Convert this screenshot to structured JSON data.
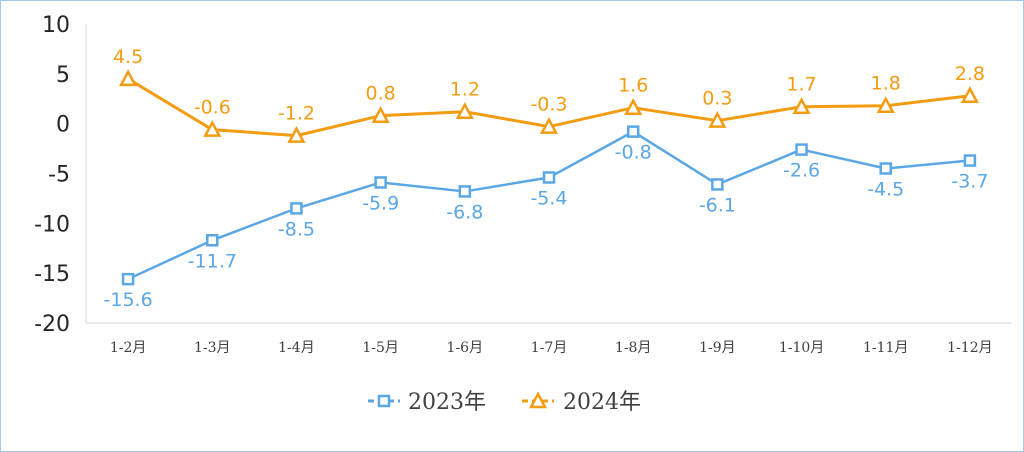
{
  "chart_data": {
    "type": "line",
    "categories": [
      "1-2月",
      "1-3月",
      "1-4月",
      "1-5月",
      "1-6月",
      "1-7月",
      "1-8月",
      "1-9月",
      "1-10月",
      "1-11月",
      "1-12月"
    ],
    "ylim": [
      -20,
      10
    ],
    "yticks": [
      "10",
      "5",
      "0",
      "-5",
      "-10",
      "-15",
      "-20"
    ],
    "grid": false,
    "legend_position": "bottom",
    "series": [
      {
        "name": "2023年",
        "color": "#5ba7e6",
        "marker": "square",
        "values": [
          -15.6,
          -11.7,
          -8.5,
          -5.9,
          -6.8,
          -5.4,
          -0.8,
          -6.1,
          -2.6,
          -4.5,
          -3.7
        ],
        "labels": [
          "-15.6",
          "-11.7",
          "-8.5",
          "-5.9",
          "-6.8",
          "-5.4",
          "-0.8",
          "-6.1",
          "-2.6",
          "-4.5",
          "-3.7"
        ]
      },
      {
        "name": "2024年",
        "color": "#f39c12",
        "marker": "triangle",
        "values": [
          4.5,
          -0.6,
          -1.2,
          0.8,
          1.2,
          -0.3,
          1.6,
          0.3,
          1.7,
          1.8,
          2.8
        ],
        "labels": [
          "4.5",
          "-0.6",
          "-1.2",
          "0.8",
          "1.2",
          "-0.3",
          "1.6",
          "0.3",
          "1.7",
          "1.8",
          "2.8"
        ]
      }
    ]
  }
}
